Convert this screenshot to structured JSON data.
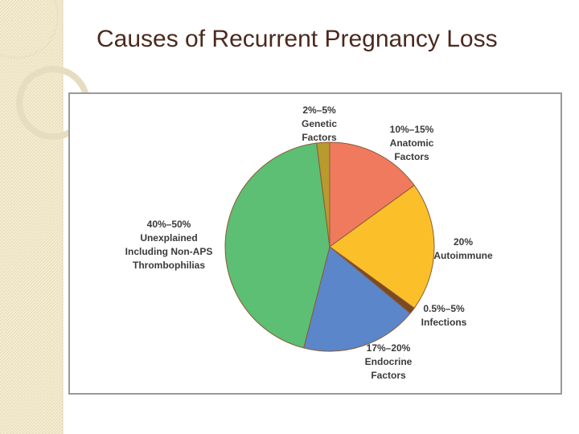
{
  "chart_data": {
    "type": "pie",
    "title": "Causes of Recurrent Pregnancy Loss",
    "categories": [
      [
        "Anatomic",
        "Factors"
      ],
      [
        "Autoimmune"
      ],
      [
        "Infections"
      ],
      [
        "Endocrine",
        "Factors"
      ],
      [
        "Unexplained",
        "Including Non-APS",
        "Thrombophilias"
      ],
      [
        "Genetic",
        "Factors"
      ]
    ],
    "values": [
      15,
      20,
      1,
      18,
      44,
      2
    ],
    "value_labels": [
      "10%–15%",
      "20%",
      "0.5%–5%",
      "17%–20%",
      "40%–50%",
      "2%–5%"
    ],
    "colors": [
      "#f07a5e",
      "#fbbf2a",
      "#7a4a22",
      "#5b86c9",
      "#5cbf73",
      "#b99a2e"
    ]
  }
}
